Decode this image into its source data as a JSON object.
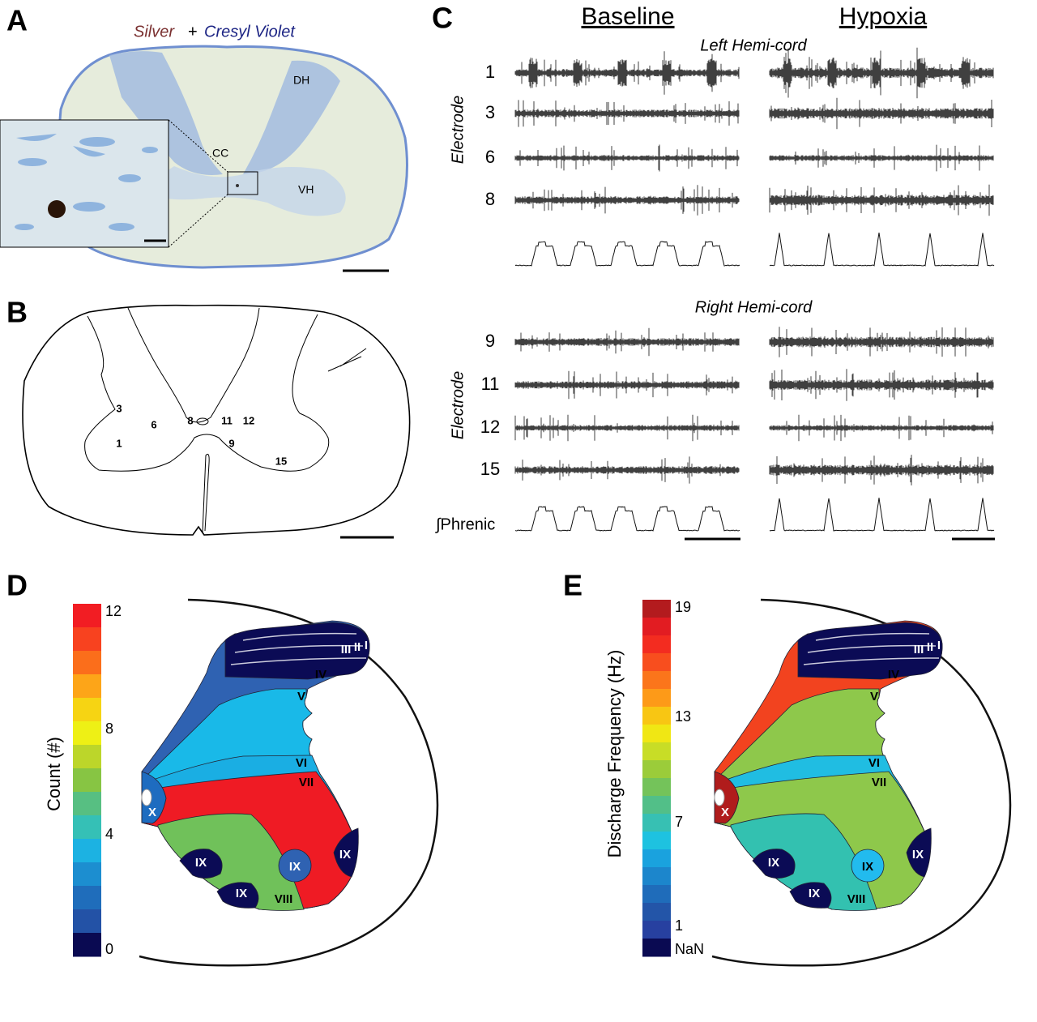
{
  "panel_a": {
    "letter": "A",
    "title_silver": "Silver",
    "title_plus": "+",
    "title_cresyl": "Cresyl Violet",
    "labels": [
      "DH",
      "CC",
      "VH"
    ]
  },
  "panel_b": {
    "letter": "B",
    "numbers": [
      "3",
      "6",
      "8",
      "11",
      "12",
      "1",
      "9",
      "15"
    ]
  },
  "panel_c": {
    "letter": "C",
    "conditions": [
      "Baseline",
      "Hypoxia"
    ],
    "left_label": "Left Hemi-cord",
    "right_label": "Right Hemi-cord",
    "electrode_labels": [
      "Electrode",
      "Electrode"
    ],
    "electrodes": [
      "1",
      "3",
      "6",
      "8",
      "9",
      "11",
      "12",
      "15"
    ],
    "phrenic_label": "∫Phrenic"
  },
  "panel_d": {
    "letter": "D",
    "colorbar": {
      "label": "Count (#)",
      "ticks": [
        "12",
        "8",
        "4",
        "0"
      ],
      "colors": [
        "#f21d23",
        "#f8421f",
        "#fb6e1b",
        "#fda518",
        "#f6d413",
        "#eef015",
        "#bcd62a",
        "#87c543",
        "#57bf82",
        "#35c0b6",
        "#1cb2e2",
        "#1c8ed0",
        "#1f6dbb",
        "#2352a6",
        "#0a0a52"
      ]
    },
    "laminae": [
      {
        "label": "IV",
        "color": "#2f62b2"
      },
      {
        "label": "V",
        "color": "#19b9e8"
      },
      {
        "label": "VI",
        "color": "#1aaee3"
      },
      {
        "label": "VII",
        "color": "#ef1b24"
      },
      {
        "label": "VIII",
        "color": "#70c15a"
      },
      {
        "label": "IX",
        "color": "#0b0b55"
      },
      {
        "label": "IX",
        "color": "#0b0b55"
      },
      {
        "label": "IX",
        "color": "#0b0b55"
      },
      {
        "label": "IX",
        "color": "#2f62b2"
      },
      {
        "label": "X",
        "color": "#1e6cc0"
      },
      {
        "label": "III",
        "color": "#0b0b55"
      },
      {
        "label": "II",
        "color": "#0b0b55"
      },
      {
        "label": "I",
        "color": "#0b0b55"
      }
    ]
  },
  "panel_e": {
    "letter": "E",
    "colorbar": {
      "label": "Discharge Frequency (Hz)",
      "ticks": [
        "19",
        "13",
        "7",
        "1",
        "NaN"
      ],
      "colors": [
        "#b31b1e",
        "#e21c22",
        "#f32c20",
        "#f84e1e",
        "#fb751b",
        "#fd9a18",
        "#f8c613",
        "#f0e714",
        "#c8dd26",
        "#9bcc3a",
        "#74c35a",
        "#52bf88",
        "#37c0b3",
        "#1ec2e0",
        "#1aa2de",
        "#1c86cc",
        "#1f6cba",
        "#2355a8",
        "#2740a0",
        "#0a0a52"
      ]
    },
    "laminae": [
      {
        "label": "IV",
        "color": "#f2431f"
      },
      {
        "label": "V",
        "color": "#8ec84b"
      },
      {
        "label": "VI",
        "color": "#20bde2"
      },
      {
        "label": "VII",
        "color": "#8ec84b"
      },
      {
        "label": "VIII",
        "color": "#33c1b0"
      },
      {
        "label": "IX",
        "color": "#0b0b55"
      },
      {
        "label": "IX",
        "color": "#0b0b55"
      },
      {
        "label": "IX",
        "color": "#0b0b55"
      },
      {
        "label": "IX",
        "color": "#22bbee"
      },
      {
        "label": "X",
        "color": "#b01c1c"
      },
      {
        "label": "III",
        "color": "#0b0b55"
      },
      {
        "label": "II",
        "color": "#0b0b55"
      },
      {
        "label": "I",
        "color": "#0b0b55"
      }
    ]
  }
}
